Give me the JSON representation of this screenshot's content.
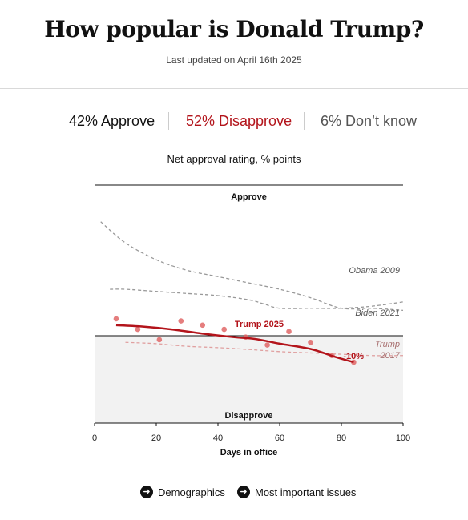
{
  "header": {
    "title": "How popular is Donald Trump?",
    "updated": "Last updated on April 16th 2025"
  },
  "stats": {
    "approve": "42% Approve",
    "disapprove": "52% Disapprove",
    "dont_know": "6% Don’t know"
  },
  "chart_title": "Net approval rating, % points",
  "chart_data": {
    "type": "line",
    "title": "Net approval rating, % points",
    "xlabel": "Days in office",
    "ylabel": "",
    "xlim": [
      0,
      100
    ],
    "x_ticks": [
      0,
      20,
      40,
      60,
      80,
      100
    ],
    "ylim": [
      -30,
      30
    ],
    "regions": {
      "above": "Approve",
      "below": "Disapprove"
    },
    "grid": false,
    "series": [
      {
        "name": "Obama 2009",
        "style": "dashed",
        "color": "#999999",
        "x": [
          2,
          10,
          20,
          30,
          40,
          50,
          60,
          70,
          80,
          90,
          100
        ],
        "y": [
          27,
          22,
          18,
          15.5,
          14,
          12.5,
          11,
          9,
          6.5,
          6.5,
          6
        ]
      },
      {
        "name": "Biden 2021",
        "style": "dashed",
        "color": "#999999",
        "x": [
          5,
          10,
          20,
          30,
          40,
          50,
          55,
          60,
          70,
          80,
          90,
          100
        ],
        "y": [
          11,
          11,
          10.5,
          10,
          9.5,
          8.5,
          7.5,
          6.5,
          6.5,
          6.5,
          7,
          8
        ]
      },
      {
        "name": "Trump 2017",
        "style": "dashed",
        "color": "#e0a0a0",
        "x": [
          10,
          20,
          30,
          40,
          50,
          60,
          70,
          80,
          90,
          100
        ],
        "y": [
          -2.5,
          -3,
          -4,
          -4.5,
          -5.2,
          -6,
          -6.5,
          -7,
          -7.5,
          -7.5
        ]
      },
      {
        "name": "Trump 2025",
        "style": "solid",
        "color": "#b3141b",
        "x": [
          7,
          15,
          25,
          35,
          45,
          52,
          60,
          70,
          78,
          84
        ],
        "y": [
          2.5,
          2.2,
          1.5,
          0.5,
          -0.5,
          -1.2,
          -3,
          -5,
          -8,
          -10
        ],
        "end_label": "-10%"
      }
    ],
    "points": {
      "color": "#e06767",
      "x": [
        7,
        14,
        21,
        28,
        35,
        42,
        49,
        56,
        63,
        70,
        77,
        84
      ],
      "y": [
        4,
        1.5,
        -1.5,
        3.5,
        2.5,
        1.5,
        -0.5,
        -3.5,
        1,
        -2.5,
        -7.5,
        -10
      ]
    },
    "annotations": [
      "Obama 2009",
      "Biden 2021",
      "Trump 2025",
      "Trump 2017",
      "-10%"
    ]
  },
  "nav": {
    "demographics": "Demographics",
    "issues": "Most important issues",
    "arrow": "➜"
  },
  "colors": {
    "accent": "#b3141b",
    "muted": "#999999",
    "disapprove_band": "#f2f2f2"
  }
}
